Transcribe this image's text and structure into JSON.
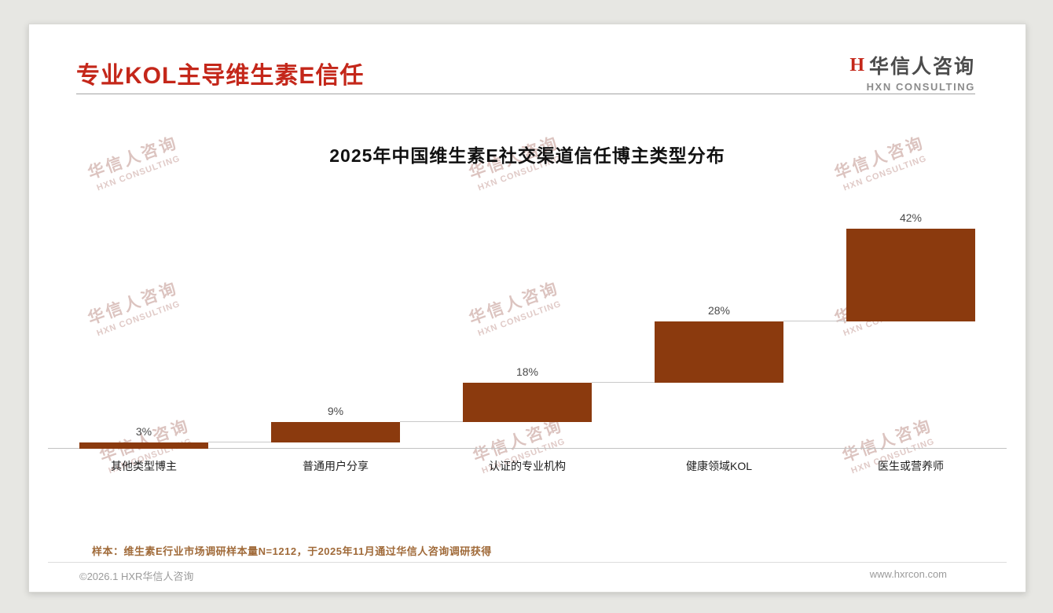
{
  "page": {
    "title": "专业KOL主导维生素E信任",
    "logo": {
      "icon": "H",
      "name": "华信人咨询",
      "subtitle": "HXN CONSULTING"
    },
    "watermark": {
      "line1": "华信人咨询",
      "line2": "HXN CONSULTING"
    },
    "footnote": "样本：维生素E行业市场调研样本量N=1212，于2025年11月通过华信人咨询调研获得",
    "footer": {
      "copyright": "©2026.1 HXR华信人咨询",
      "website": "www.hxrcon.com"
    }
  },
  "colors": {
    "accent_red": "#C4271A",
    "bar_brown": "#8B3A0E",
    "footnote_brown": "#A06A39"
  },
  "chart_data": {
    "type": "bar",
    "variant": "waterfall-step",
    "title": "2025年中国维生素E社交渠道信任博主类型分布",
    "categories": [
      "其他类型博主",
      "普通用户分享",
      "认证的专业机构",
      "健康领域KOL",
      "医生或营养师"
    ],
    "values": [
      3,
      9,
      18,
      28,
      42
    ],
    "labels": [
      "3%",
      "9%",
      "18%",
      "28%",
      "42%"
    ],
    "cumulative_baselines": [
      0,
      3,
      12,
      30,
      58
    ],
    "unit": "%",
    "ylim": [
      0,
      100
    ],
    "bar_color": "#8B3A0E",
    "grid": false,
    "legend": "none",
    "xlabel": "",
    "ylabel": ""
  }
}
